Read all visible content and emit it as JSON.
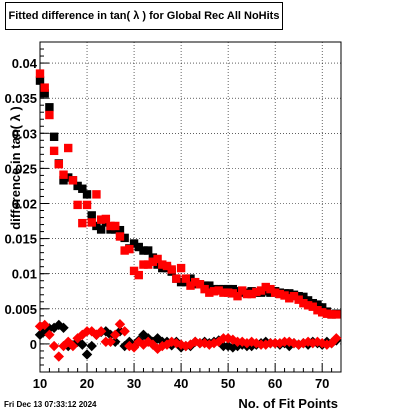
{
  "title": "Fitted difference in tan( λ ) for Global Rec All NoHits",
  "footer": {
    "date": "Fri Dec 13 07:33:12 2024"
  },
  "chart_data": {
    "type": "scatter",
    "xlabel": "No. of Fit Points",
    "ylabel": "difference in tan( λ )",
    "xlim": [
      10,
      74
    ],
    "ylim": [
      -0.004,
      0.043
    ],
    "x_ticks": [
      10,
      20,
      30,
      40,
      50,
      60,
      70
    ],
    "y_ticks": [
      0,
      0.005,
      0.01,
      0.015,
      0.02,
      0.025,
      0.03,
      0.035,
      0.04
    ],
    "y_tick_labels": [
      "0",
      "0.005",
      "0.01",
      "0.015",
      "0.02",
      "0.025",
      "0.03",
      "0.035",
      "0.04"
    ],
    "grid": true,
    "series": [
      {
        "color": "#000000",
        "marker": "square",
        "x": [
          10,
          11,
          12,
          13,
          14,
          15,
          16,
          17,
          18,
          19,
          20,
          21,
          22,
          23,
          24,
          25,
          26,
          27,
          28,
          29,
          30,
          31,
          32,
          33,
          34,
          35,
          36,
          37,
          38,
          39,
          40,
          41,
          42,
          43,
          44,
          45,
          46,
          47,
          48,
          49,
          50,
          51,
          52,
          53,
          54,
          55,
          56,
          57,
          58,
          59,
          60,
          61,
          62,
          63,
          64,
          65,
          66,
          67,
          68,
          69,
          70,
          71,
          72,
          73
        ],
        "y": [
          0.0375,
          0.0357,
          0.0337,
          0.0295,
          0.0257,
          0.0233,
          0.0237,
          0.0233,
          0.0225,
          0.0221,
          0.0213,
          0.0183,
          0.0168,
          0.0163,
          0.0173,
          0.0163,
          0.0163,
          0.0162,
          0.0151,
          0.0136,
          0.0143,
          0.0138,
          0.0133,
          0.0133,
          0.0123,
          0.0113,
          0.0108,
          0.0108,
          0.0103,
          0.0093,
          0.0088,
          0.0088,
          0.0093,
          0.0085,
          0.0085,
          0.0083,
          0.0083,
          0.0078,
          0.0078,
          0.0078,
          0.0078,
          0.0078,
          0.0075,
          0.0073,
          0.0073,
          0.0075,
          0.0073,
          0.0073,
          0.0075,
          0.0073,
          0.0075,
          0.0073,
          0.0072,
          0.0072,
          0.007,
          0.0068,
          0.0067,
          0.0062,
          0.0058,
          0.0056,
          0.0052,
          0.0046,
          0.0042,
          0.0043
        ]
      },
      {
        "color": "#ff0000",
        "marker": "square",
        "x": [
          10,
          11,
          12,
          13,
          14,
          15,
          16,
          17,
          18,
          19,
          20,
          21,
          22,
          23,
          24,
          25,
          26,
          27,
          28,
          29,
          30,
          31,
          32,
          33,
          34,
          35,
          36,
          37,
          38,
          39,
          40,
          41,
          42,
          43,
          44,
          45,
          46,
          47,
          48,
          49,
          50,
          51,
          52,
          53,
          54,
          55,
          56,
          57,
          58,
          59,
          60,
          61,
          62,
          63,
          64,
          65,
          66,
          67,
          68,
          69,
          70,
          71,
          72,
          73
        ],
        "y": [
          0.0385,
          0.0365,
          0.0326,
          0.0275,
          0.0256,
          0.0241,
          0.0279,
          0.0233,
          0.0198,
          0.0172,
          0.0198,
          0.0173,
          0.0213,
          0.0177,
          0.0178,
          0.0168,
          0.0168,
          0.0153,
          0.0133,
          0.0135,
          0.0104,
          0.0098,
          0.0113,
          0.0113,
          0.0117,
          0.0121,
          0.0113,
          0.0111,
          0.0106,
          0.0093,
          0.0108,
          0.0093,
          0.0083,
          0.0088,
          0.0085,
          0.0078,
          0.0073,
          0.0075,
          0.0076,
          0.0073,
          0.0073,
          0.0072,
          0.0068,
          0.0076,
          0.0071,
          0.0071,
          0.0074,
          0.0076,
          0.0081,
          0.0078,
          0.0073,
          0.0071,
          0.0069,
          0.0065,
          0.0068,
          0.0063,
          0.0058,
          0.0055,
          0.0053,
          0.0048,
          0.0045,
          0.0043,
          0.0042,
          0.0042
        ]
      },
      {
        "color": "#000000",
        "marker": "diamond",
        "x": [
          10,
          11,
          12,
          13,
          14,
          15,
          16,
          17,
          18,
          19,
          20,
          21,
          22,
          23,
          24,
          25,
          26,
          27,
          28,
          29,
          30,
          31,
          32,
          33,
          34,
          35,
          36,
          37,
          38,
          39,
          40,
          41,
          42,
          43,
          44,
          45,
          46,
          47,
          48,
          49,
          50,
          51,
          52,
          53,
          54,
          55,
          56,
          57,
          58,
          59,
          60,
          61,
          62,
          63,
          64,
          65,
          66,
          67,
          68,
          69,
          70,
          71,
          72,
          73
        ],
        "y": [
          0.0013,
          0.0018,
          0.0022,
          0.0023,
          0.0027,
          0.0023,
          -0.0003,
          -0.0002,
          0.0003,
          -0.0001,
          -0.0015,
          -0.0003,
          0.0013,
          0.0017,
          0.0018,
          0.0013,
          0.0003,
          0.0018,
          -0.0003,
          0.0003,
          -0.0003,
          0.0005,
          0.0013,
          0.0008,
          0.0003,
          0.0008,
          0.0003,
          0.0003,
          -0.0002,
          0.0003,
          -0.0005,
          -0.0003,
          -0.0003,
          0.0003,
          0.0001,
          0.0003,
          0.0001,
          0.0003,
          0.0005,
          -0.0003,
          -0.0003,
          -0.0005,
          -0.0003,
          -0.0001,
          -0.0003,
          -0.0003,
          -0.0001,
          0.0001,
          0.0003,
          0.0001,
          0.0001,
          -0.0001,
          0.0001,
          -0.0003,
          0.0001,
          -0.0001,
          0.0001,
          -0.0001,
          0.0003,
          0.0001,
          -0.0001,
          0.0003,
          0.0001,
          0.0005
        ]
      },
      {
        "color": "#ff0000",
        "marker": "diamond",
        "x": [
          10,
          11,
          12,
          13,
          14,
          15,
          16,
          17,
          18,
          19,
          20,
          21,
          22,
          23,
          24,
          25,
          26,
          27,
          28,
          29,
          30,
          31,
          32,
          33,
          34,
          35,
          36,
          37,
          38,
          39,
          40,
          41,
          42,
          43,
          44,
          45,
          46,
          47,
          48,
          49,
          50,
          51,
          52,
          53,
          54,
          55,
          56,
          57,
          58,
          59,
          60,
          61,
          62,
          63,
          64,
          65,
          66,
          67,
          68,
          69,
          70,
          71,
          72,
          73
        ],
        "y": [
          0.0025,
          0.0027,
          0.0013,
          -0.0003,
          -0.0018,
          -0.0003,
          0.0003,
          -0.0003,
          0.0008,
          0.0013,
          0.0018,
          0.0018,
          0.0013,
          0.0018,
          0.0003,
          0.0003,
          0.0013,
          0.0028,
          0.0018,
          -0.0003,
          -0.0005,
          0.0003,
          -0.0001,
          0.0003,
          -0.0001,
          -0.0007,
          -0.0003,
          -0.0001,
          0.0003,
          0.0001,
          -0.0001,
          -0.0003,
          -0.0001,
          0.0003,
          0.0001,
          0.0001,
          -0.0001,
          0.0001,
          0.0003,
          0.0008,
          0.0008,
          0.0006,
          0.0003,
          0.0003,
          0.0001,
          0.0003,
          0.0001,
          -0.0001,
          -0.0001,
          0.0001,
          0.0001,
          0.0001,
          0.0003,
          0.0003,
          0.0001,
          -0.0001,
          0.0001,
          0.0003,
          0.0001,
          0.0003,
          0.0001,
          -0.0001,
          0.0001,
          0.0008
        ]
      }
    ]
  }
}
